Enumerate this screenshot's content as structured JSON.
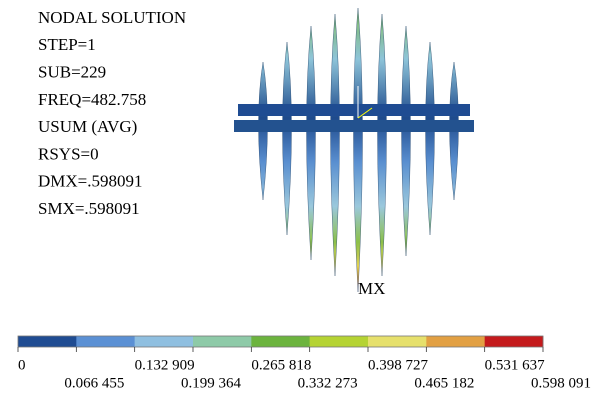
{
  "info": {
    "lines": [
      "NODAL SOLUTION",
      "STEP=1",
      "SUB=229",
      "FREQ=482.758",
      "USUM (AVG)",
      "RSYS=0",
      "DMX=.598091",
      "SMX=.598091"
    ]
  },
  "annotation": "MX",
  "legend": {
    "colors": [
      "#1f4c92",
      "#5b90d4",
      "#8fbfe0",
      "#8ecaa8",
      "#6cb43e",
      "#b5d333",
      "#e6e06c",
      "#e2a043",
      "#c41a1c"
    ],
    "labels": [
      "0",
      "0.066 455",
      "0.132 909",
      "0.199 364",
      "0.265 818",
      "0.332 273",
      "0.398 727",
      "0.465 182",
      "0.531 637",
      "0.598 091"
    ]
  }
}
